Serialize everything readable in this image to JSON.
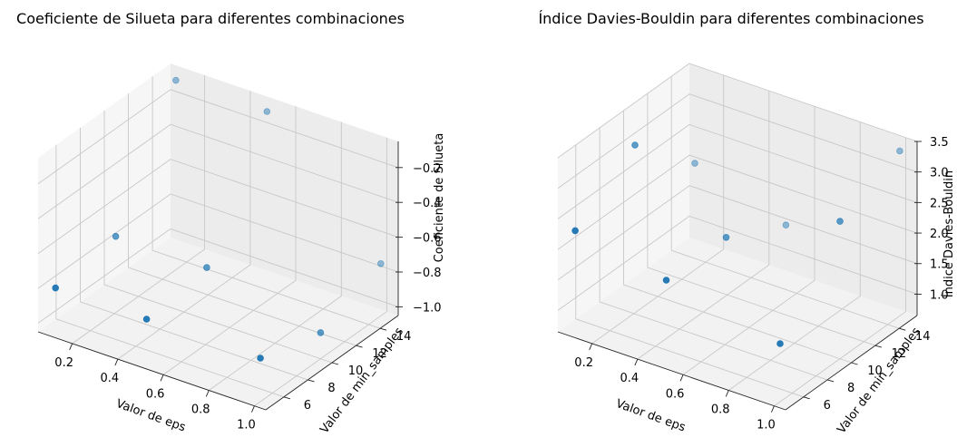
{
  "chart_data": [
    {
      "type": "scatter",
      "projection": "3d",
      "title": "Coeficiente de Silueta para diferentes combinaciones",
      "xlabel": "Valor de eps",
      "ylabel": "Valor de min_samples",
      "zlabel": "Coeficiente de Silueta",
      "xlim": [
        0.05,
        1.05
      ],
      "ylim": [
        4.5,
        15.5
      ],
      "zlim": [
        -1.05,
        -0.05
      ],
      "xticks": [
        "0.2",
        "0.4",
        "0.6",
        "0.8",
        "1.0"
      ],
      "yticks": [
        "6",
        "8",
        "10",
        "12",
        "14"
      ],
      "zticks": [
        "−1.0",
        "−0.8",
        "−0.6",
        "−0.4",
        "−0.2"
      ],
      "grid": true,
      "point_color": "#1f77b4",
      "points": [
        {
          "x": 0.1,
          "y": 5,
          "z": -0.8
        },
        {
          "x": 0.5,
          "y": 5,
          "z": -0.8
        },
        {
          "x": 1.0,
          "y": 5,
          "z": -0.8
        },
        {
          "x": 0.1,
          "y": 10,
          "z": -0.75
        },
        {
          "x": 0.5,
          "y": 10,
          "z": -0.75
        },
        {
          "x": 1.0,
          "y": 10,
          "z": -0.9
        },
        {
          "x": 0.1,
          "y": 15,
          "z": -0.1
        },
        {
          "x": 0.5,
          "y": 15,
          "z": -0.1
        },
        {
          "x": 1.0,
          "y": 15,
          "z": -0.75
        }
      ]
    },
    {
      "type": "scatter",
      "projection": "3d",
      "title": "Índice Davies-Bouldin para diferentes combinaciones",
      "xlabel": "Valor de eps",
      "ylabel": "Valor de min_samples",
      "zlabel": "Índice Davies-Bouldin",
      "xlim": [
        0.05,
        1.05
      ],
      "ylim": [
        4.5,
        15.5
      ],
      "zlim": [
        0.65,
        3.5
      ],
      "xticks": [
        "0.2",
        "0.4",
        "0.6",
        "0.8",
        "1.0"
      ],
      "yticks": [
        "6",
        "8",
        "10",
        "12",
        "14"
      ],
      "zticks": [
        "1.0",
        "1.5",
        "2.0",
        "2.5",
        "3.0",
        "3.5"
      ],
      "grid": true,
      "point_color": "#1f77b4",
      "points": [
        {
          "x": 0.1,
          "y": 5,
          "z": 2.3
        },
        {
          "x": 0.5,
          "y": 5,
          "z": 2.0
        },
        {
          "x": 1.0,
          "y": 5,
          "z": 1.6
        },
        {
          "x": 0.1,
          "y": 10,
          "z": 3.0
        },
        {
          "x": 0.5,
          "y": 10,
          "z": 2.0
        },
        {
          "x": 1.0,
          "y": 10,
          "z": 2.9
        },
        {
          "x": 0.1,
          "y": 15,
          "z": 2.0
        },
        {
          "x": 0.5,
          "y": 15,
          "z": 1.5
        },
        {
          "x": 1.0,
          "y": 15,
          "z": 3.35
        }
      ]
    }
  ]
}
